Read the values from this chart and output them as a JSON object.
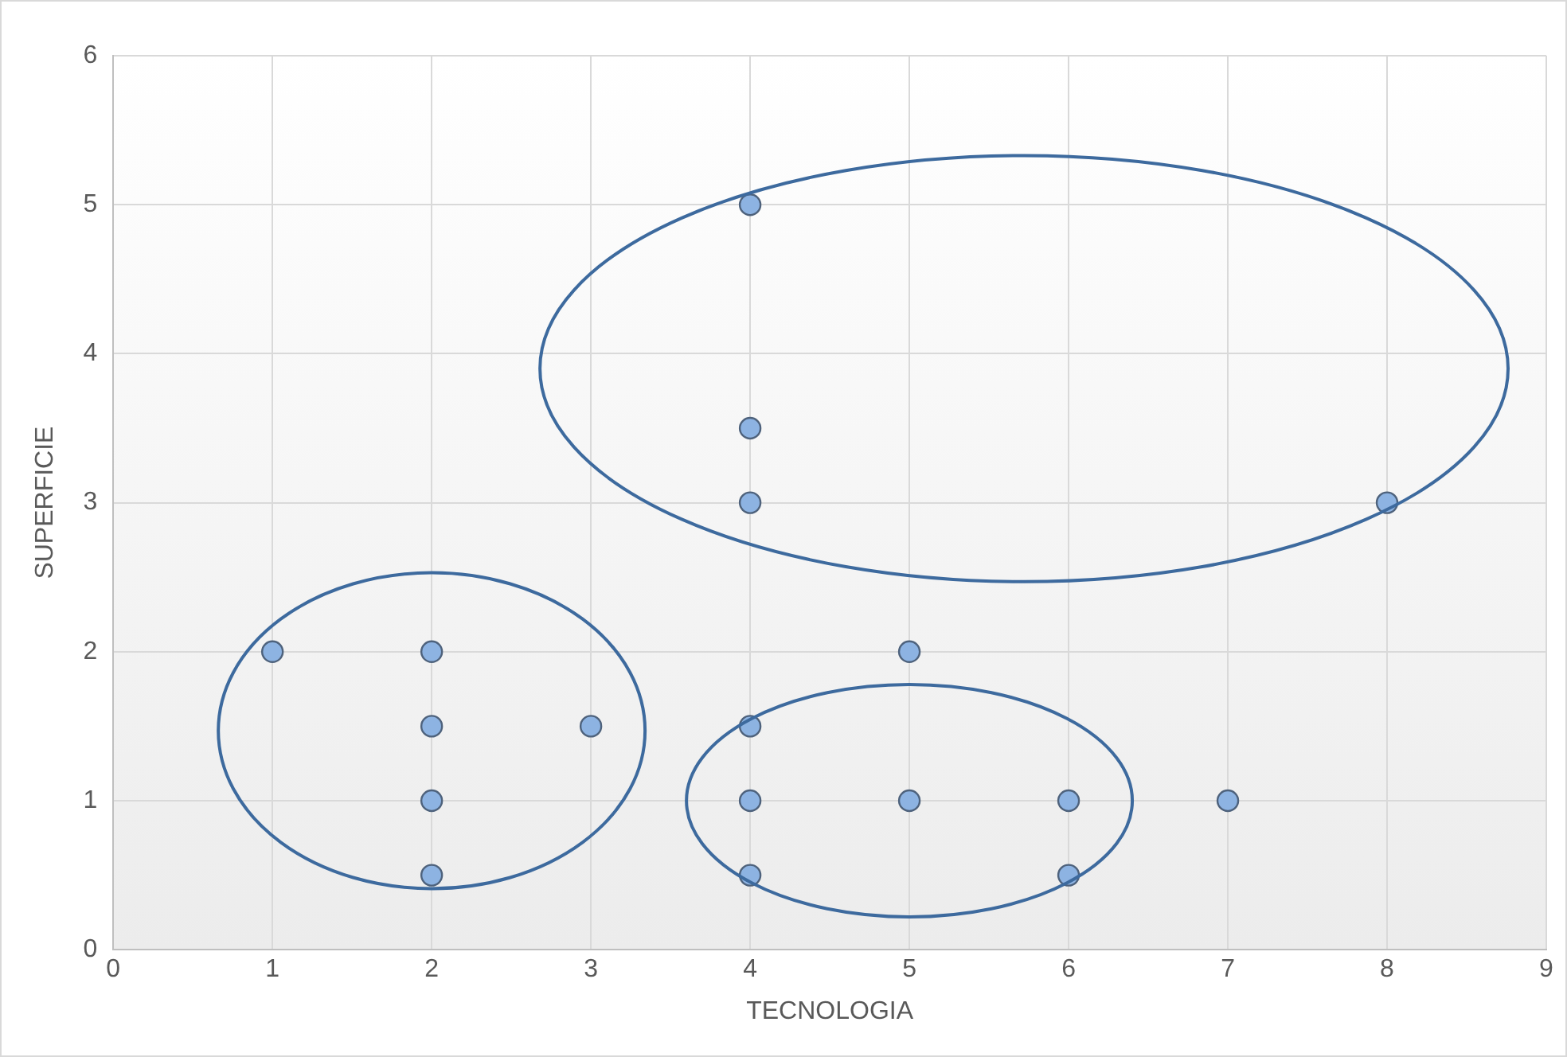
{
  "chart_data": {
    "type": "scatter",
    "xlabel": "TECNOLOGIA",
    "ylabel": "SUPERFICIE",
    "x": [
      1,
      2,
      2,
      2,
      2,
      3,
      4,
      4,
      4,
      4,
      4,
      4,
      5,
      5,
      6,
      6,
      7,
      8
    ],
    "values": [
      2,
      2,
      1.5,
      1,
      0.5,
      1.5,
      5,
      3.5,
      3,
      1.5,
      1,
      0.5,
      2,
      1,
      1,
      0.5,
      1,
      3
    ],
    "color": "#8db3e2",
    "xlim": [
      0,
      9
    ],
    "xticks": [
      0,
      1,
      2,
      3,
      4,
      5,
      6,
      7,
      8,
      9
    ],
    "ylim": [
      0,
      6
    ],
    "yticks": [
      0,
      1,
      2,
      3,
      4,
      5,
      6
    ],
    "grid": true,
    "legend": false,
    "marker": "circle"
  }
}
